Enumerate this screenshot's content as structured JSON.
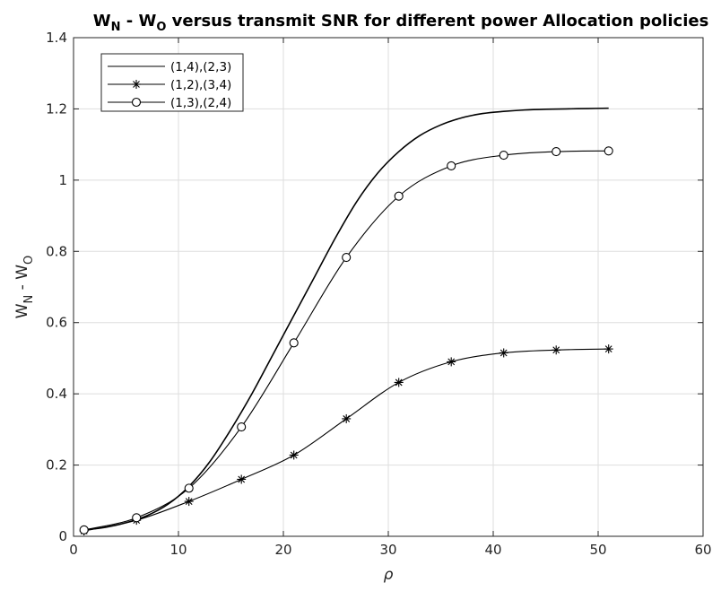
{
  "chart_data": {
    "type": "line",
    "title": "W_N - W_O versus transmit SNR for different power Allocation policies",
    "title_parts": {
      "w1": "W",
      "s1": "N",
      "mid": " - W",
      "s2": "O",
      "rest": " versus transmit SNR for different power Allocation policies"
    },
    "xlabel": "ρ",
    "ylabel": "W_N - W_O",
    "ylabel_parts": {
      "w1": "W",
      "s1": "N",
      "mid": " - W",
      "s2": "O"
    },
    "xlim": [
      0,
      60
    ],
    "ylim": [
      0,
      1.4
    ],
    "xticks": [
      0,
      10,
      20,
      30,
      40,
      50,
      60
    ],
    "xtick_labels": [
      "0",
      "10",
      "20",
      "30",
      "40",
      "50",
      "60"
    ],
    "yticks": [
      0,
      0.2,
      0.4,
      0.6,
      0.8,
      1.0,
      1.2,
      1.4
    ],
    "ytick_labels": [
      "0",
      "0.2",
      "0.4",
      "0.6",
      "0.8",
      "1",
      "1.2",
      "1.4"
    ],
    "grid": true,
    "legend_position": "top-left",
    "series": [
      {
        "name": "(1,4),(2,3)",
        "marker": "none",
        "color": "#000000",
        "x": [
          1,
          3,
          5,
          7,
          9,
          11,
          13,
          15,
          17,
          19,
          21,
          23,
          25,
          27,
          29,
          31,
          33,
          35,
          37,
          39,
          41,
          43,
          45,
          47,
          49,
          51
        ],
        "y": [
          0.018,
          0.025,
          0.038,
          0.058,
          0.09,
          0.14,
          0.21,
          0.3,
          0.4,
          0.51,
          0.62,
          0.73,
          0.84,
          0.94,
          1.02,
          1.08,
          1.125,
          1.155,
          1.175,
          1.187,
          1.193,
          1.197,
          1.199,
          1.2,
          1.201,
          1.202
        ]
      },
      {
        "name": "(1,2),(3,4)",
        "marker": "asterisk",
        "color": "#000000",
        "x": [
          1,
          6,
          11,
          16,
          21,
          26,
          31,
          36,
          41,
          46,
          51
        ],
        "y": [
          0.015,
          0.045,
          0.098,
          0.16,
          0.228,
          0.33,
          0.432,
          0.49,
          0.515,
          0.523,
          0.526
        ]
      },
      {
        "name": "(1,3),(2,4)",
        "marker": "circle",
        "color": "#000000",
        "x": [
          1,
          6,
          11,
          16,
          21,
          26,
          31,
          36,
          41,
          46,
          51
        ],
        "y": [
          0.018,
          0.052,
          0.135,
          0.307,
          0.543,
          0.783,
          0.955,
          1.04,
          1.07,
          1.08,
          1.082
        ]
      }
    ]
  }
}
